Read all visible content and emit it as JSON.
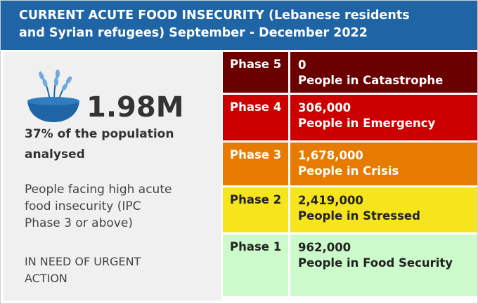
{
  "header": {
    "title": "CURRENT ACUTE FOOD INSECURITY (Lebanese residents and Syrian refugees) September - December 2022"
  },
  "summary": {
    "total": "1.98M",
    "share": "37% of the population analysed",
    "description": "People facing high acute food insecurity (IPC Phase 3 or above)",
    "action": "IN NEED OF URGENT ACTION"
  },
  "phases": [
    {
      "phase": "Phase 5",
      "people": "0",
      "label": "People in Catastrophe",
      "color": "#6a0000",
      "text_color": "#ffffff"
    },
    {
      "phase": "Phase 4",
      "people": "306,000",
      "label": "People in Emergency",
      "color": "#cc0000",
      "text_color": "#ffffff"
    },
    {
      "phase": "Phase 3",
      "people": "1,678,000",
      "label": "People in Crisis",
      "color": "#e77b00",
      "text_color": "#ffffff"
    },
    {
      "phase": "Phase 2",
      "people": "2,419,000",
      "label": "People in Stressed",
      "color": "#f6e51d",
      "text_color": "#222222"
    },
    {
      "phase": "Phase 1",
      "people": "962,000",
      "label": "People in Food Security",
      "color": "#cdfacb",
      "text_color": "#222222"
    }
  ]
}
